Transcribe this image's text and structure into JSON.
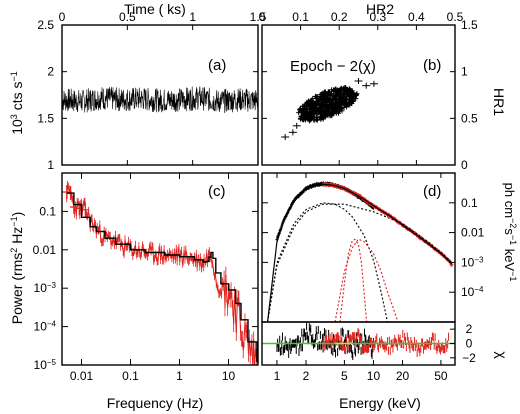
{
  "colors": {
    "black": "#000000",
    "red": "#e0221e",
    "green": "#3cc43c",
    "yellow": "#e8d21a"
  },
  "chart_data": [
    {
      "panel": "a",
      "type": "line",
      "tag": "(a)",
      "xlabel": "Time ( ks)",
      "ylabel": "10^3 cts s^-1",
      "ylabel_parts": [
        "10",
        "3",
        " cts s",
        "−1"
      ],
      "xlim": [
        0,
        1.5
      ],
      "ylim": [
        1.0,
        2.5
      ],
      "xticks": [
        "0",
        "0.5",
        "1",
        "1.5"
      ],
      "xtick_values": [
        0,
        0.5,
        1,
        1.5
      ],
      "yticks": [
        "1",
        "1.5",
        "2",
        "2.5"
      ],
      "ytick_values": [
        1,
        1.5,
        2,
        2.5
      ],
      "series": [
        {
          "color": "black",
          "x": [
            0,
            0.15,
            0.3,
            0.45,
            0.6,
            0.75,
            0.9,
            1.05,
            1.2,
            1.35,
            1.5
          ],
          "y": [
            1.7,
            1.68,
            1.72,
            1.7,
            1.71,
            1.69,
            1.7,
            1.72,
            1.68,
            1.7,
            1.69
          ],
          "scatter": 0.13
        }
      ]
    },
    {
      "panel": "b",
      "type": "scatter",
      "tag": "(b)",
      "annotation": "Epoch − 2(χ)",
      "xlabel": "HR2",
      "ylabel": "HR1",
      "xlim": [
        0,
        0.5
      ],
      "ylim": [
        0,
        1.5
      ],
      "xticks": [
        "0",
        "0.1",
        "0.2",
        "0.3",
        "0.4",
        "0.5"
      ],
      "xtick_values": [
        0,
        0.1,
        0.2,
        0.3,
        0.4,
        0.5
      ],
      "yticks": [
        "0",
        "0.5",
        "1",
        "1.5"
      ],
      "ytick_values": [
        0,
        0.5,
        1,
        1.5
      ],
      "cluster": {
        "x_range": [
          0.08,
          0.26
        ],
        "y_range": [
          0.45,
          0.85
        ],
        "center": [
          0.17,
          0.65
        ]
      },
      "outliers": [
        [
          0.06,
          0.3
        ],
        [
          0.08,
          0.35
        ],
        [
          0.09,
          0.42
        ],
        [
          0.27,
          0.85
        ],
        [
          0.29,
          0.87
        ],
        [
          0.25,
          0.9
        ]
      ]
    },
    {
      "panel": "c",
      "type": "line",
      "tag": "(c)",
      "xlabel": "Frequency (Hz)",
      "ylabel": "Power (rms^2 Hz^-1)",
      "ylabel_parts": [
        "Power (rms",
        "2",
        " Hz",
        "−1",
        ")"
      ],
      "xscale": "log",
      "yscale": "log",
      "xlim": [
        0.004,
        40
      ],
      "ylim": [
        1e-05,
        1
      ],
      "xticks": [
        "0.01",
        "0.1",
        "1",
        "10"
      ],
      "xtick_values": [
        0.01,
        0.1,
        1,
        10
      ],
      "yticks": [
        "10^-5",
        "10^-4",
        "10^-3",
        "0.01",
        "0.1"
      ],
      "ytick_values": [
        1e-05,
        0.0001,
        0.001,
        0.01,
        0.1
      ],
      "series": [
        {
          "color": "red",
          "kind": "data",
          "x": [
            0.005,
            0.006,
            0.007,
            0.009,
            0.012,
            0.016,
            0.022,
            0.03,
            0.045,
            0.07,
            0.1,
            0.15,
            0.25,
            0.4,
            0.7,
            1.0,
            1.5,
            2.2,
            3.0,
            3.8,
            4.5,
            5.0,
            6,
            8,
            10,
            14,
            18,
            24,
            30,
            38
          ],
          "y": [
            0.32,
            0.3,
            0.13,
            0.12,
            0.11,
            0.05,
            0.032,
            0.02,
            0.018,
            0.012,
            0.0105,
            0.0095,
            0.008,
            0.0075,
            0.0068,
            0.0072,
            0.0065,
            0.0055,
            0.0045,
            0.007,
            0.008,
            0.004,
            0.0012,
            0.001,
            0.0009,
            0.0003,
            0.0001,
            4e-05,
            2e-05,
            1.5e-05
          ]
        },
        {
          "color": "black",
          "kind": "model",
          "x": [
            0.005,
            0.007,
            0.01,
            0.015,
            0.02,
            0.03,
            0.05,
            0.1,
            0.2,
            0.5,
            1,
            2,
            3,
            3.5,
            4,
            4.4,
            4.8,
            5.5,
            7,
            10,
            14,
            18,
            25,
            38
          ],
          "y": [
            0.3,
            0.15,
            0.07,
            0.04,
            0.03,
            0.02,
            0.014,
            0.01,
            0.0085,
            0.0073,
            0.0066,
            0.0055,
            0.0048,
            0.005,
            0.0065,
            0.0085,
            0.006,
            0.0025,
            0.0013,
            0.0009,
            0.0004,
            0.00015,
            4e-05,
            1.2e-05
          ]
        }
      ]
    },
    {
      "panel": "d",
      "type": "line",
      "tag": "(d)",
      "xlabel": "Energy (keV)",
      "ylabel": "ph cm^-2 s^-1 keV^-1",
      "ylabel_line1": "ph cm",
      "ylabel_sup1": "−2",
      "ylabel_line2": "s",
      "ylabel_sup2": "−1",
      "ylabel_line3": " keV",
      "ylabel_sup3": "−1",
      "resid_label": "χ",
      "xscale": "log",
      "yscale": "log",
      "xlim": [
        0.7,
        70
      ],
      "ylim": [
        1e-05,
        1
      ],
      "xticks": [
        "1",
        "2",
        "5",
        "10",
        "20",
        "50"
      ],
      "xtick_values": [
        1,
        2,
        5,
        10,
        20,
        50
      ],
      "yticks": [
        "10^-4",
        "10^-3",
        "0.01",
        "0.1"
      ],
      "ytick_values": [
        0.0001,
        0.001,
        0.01,
        0.1
      ],
      "resid_lim": [
        -3,
        3
      ],
      "resid_ticks": [
        "2",
        "0",
        "−2"
      ],
      "resid_tick_values": [
        2,
        0,
        -2
      ],
      "series": [
        {
          "color": "black",
          "kind": "data",
          "x": [
            1.0,
            1.2,
            1.5,
            2,
            2.5,
            3,
            3.5,
            4,
            5,
            6,
            7,
            8,
            9,
            10
          ],
          "y": [
            0.006,
            0.03,
            0.12,
            0.3,
            0.4,
            0.43,
            0.42,
            0.38,
            0.3,
            0.22,
            0.16,
            0.12,
            0.09,
            0.07
          ]
        },
        {
          "color": "red",
          "kind": "data",
          "x": [
            3,
            4,
            5,
            6,
            7,
            8,
            10,
            12,
            15,
            20,
            25,
            30,
            40,
            50,
            60,
            65
          ],
          "y": [
            0.42,
            0.38,
            0.3,
            0.22,
            0.18,
            0.13,
            0.08,
            0.055,
            0.035,
            0.018,
            0.011,
            0.007,
            0.0035,
            0.002,
            0.0012,
            0.0008
          ]
        },
        {
          "color": "black",
          "kind": "model_total",
          "x": [
            0.8,
            1,
            1.2,
            1.5,
            2,
            2.5,
            3,
            4,
            5,
            6,
            8,
            10,
            15,
            20,
            30,
            50,
            65
          ],
          "y": [
            1e-05,
            0.005,
            0.03,
            0.12,
            0.3,
            0.4,
            0.42,
            0.38,
            0.3,
            0.22,
            0.13,
            0.08,
            0.035,
            0.018,
            0.007,
            0.002,
            0.0009
          ]
        },
        {
          "color": "black",
          "kind": "component",
          "x": [
            0.8,
            1,
            1.5,
            2,
            3,
            4,
            5,
            6,
            8,
            10,
            12,
            14
          ],
          "y": [
            1e-05,
            0.001,
            0.02,
            0.06,
            0.1,
            0.09,
            0.06,
            0.035,
            0.008,
            0.0012,
            0.0001,
            1e-05
          ]
        },
        {
          "color": "black",
          "kind": "component",
          "x": [
            0.8,
            1,
            1.5,
            2,
            3,
            5,
            10,
            20,
            30,
            50,
            65
          ],
          "y": [
            1e-05,
            0.0008,
            0.015,
            0.05,
            0.09,
            0.09,
            0.05,
            0.02,
            0.008,
            0.0022,
            0.001
          ]
        },
        {
          "color": "red",
          "kind": "component",
          "x": [
            4.5,
            5,
            5.5,
            6,
            6.4,
            7,
            7.5,
            8,
            8.5
          ],
          "y": [
            1e-05,
            0.0002,
            0.002,
            0.005,
            0.006,
            0.004,
            0.001,
            0.0001,
            1e-05
          ]
        },
        {
          "color": "red",
          "kind": "component",
          "x": [
            4,
            5,
            6,
            7,
            8,
            10,
            12,
            14,
            16,
            18
          ],
          "y": [
            1e-05,
            0.0005,
            0.003,
            0.006,
            0.005,
            0.002,
            0.0005,
            0.0001,
            3e-05,
            1e-05
          ]
        }
      ],
      "residuals": {
        "black": {
          "x": [
            1,
            1.5,
            2,
            3,
            4,
            5,
            6,
            8,
            10
          ],
          "y": [
            0.2,
            -0.8,
            1.2,
            0.5,
            -0.3,
            0.8,
            -0.6,
            0.4,
            -1.0
          ],
          "spread": 2.5
        },
        "red": {
          "x": [
            3,
            4,
            5,
            6,
            7,
            8,
            10,
            15,
            20,
            30,
            40,
            50,
            60
          ],
          "y": [
            0.3,
            0.5,
            -0.3,
            0.2,
            1.0,
            -0.5,
            0.3,
            -0.4,
            0.6,
            -0.8,
            0.5,
            -0.6,
            0.4
          ],
          "spread": 1.6
        }
      },
      "reference_line": 0
    }
  ]
}
